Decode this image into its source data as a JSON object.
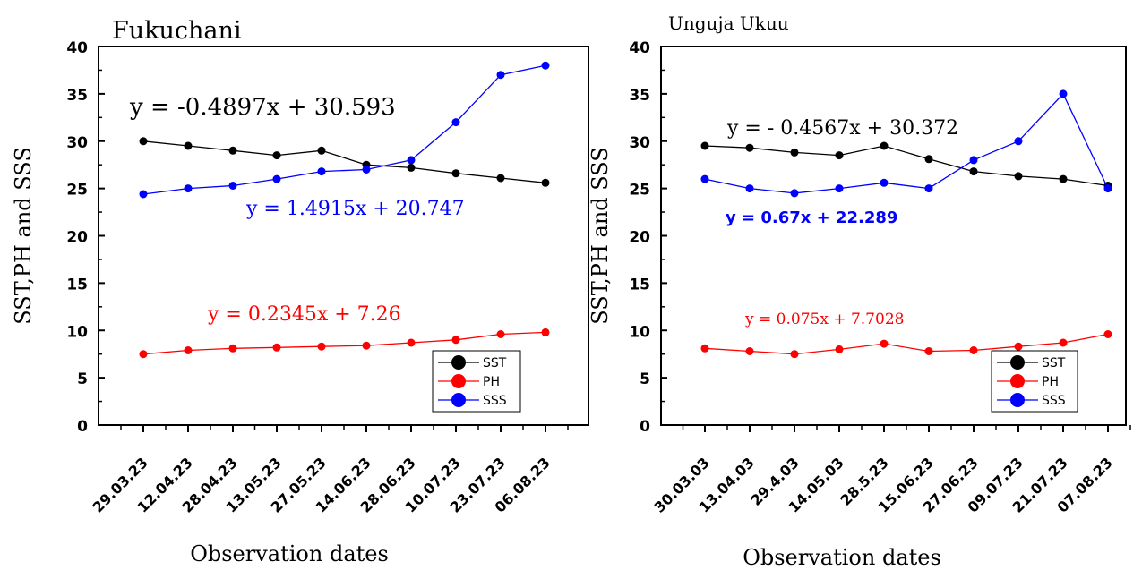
{
  "chart_data": [
    {
      "type": "line",
      "title": "Fukuchani",
      "xlabel": "Observation dates",
      "ylabel": "SST,PH and SSS",
      "categories": [
        "29.03.23",
        "12.04.23",
        "28.04.23",
        "13.05.23",
        "27.05.23",
        "14.06.23",
        "28.06.23",
        "10.07.23",
        "23.07.23",
        "06.08.23"
      ],
      "ylim": [
        0,
        40
      ],
      "yticks": [
        0,
        5,
        10,
        15,
        20,
        25,
        30,
        35,
        40
      ],
      "legend_position": "bottom-right",
      "series": [
        {
          "name": "SST",
          "color": "#000000",
          "values": [
            30.0,
            29.5,
            29.0,
            28.5,
            29.0,
            27.5,
            27.2,
            26.6,
            26.1,
            25.6
          ]
        },
        {
          "name": "PH",
          "color": "#ff0000",
          "values": [
            7.5,
            7.9,
            8.1,
            8.2,
            8.3,
            8.4,
            8.7,
            9.0,
            9.6,
            9.8
          ]
        },
        {
          "name": "SSS",
          "color": "#0000ff",
          "values": [
            24.4,
            25.0,
            25.3,
            26.0,
            26.8,
            27.0,
            28.0,
            32.0,
            37.0,
            38.0
          ]
        }
      ],
      "annotations": [
        {
          "series": "SST",
          "text": "y = -0.4897x + 30.593",
          "color": "#000000"
        },
        {
          "series": "SSS",
          "text": "y = 1.4915x + 20.747",
          "color": "#0000ff"
        },
        {
          "series": "PH",
          "text": "y = 0.2345x + 7.26",
          "color": "#ff0000"
        }
      ]
    },
    {
      "type": "line",
      "title": "Unguja Ukuu",
      "xlabel": "Observation dates",
      "ylabel": "SST,PH and SSS",
      "categories": [
        "30.03.03",
        "13.04.03",
        "29.4.03",
        "14.05.03",
        "28.5.23",
        "15.06.23",
        "27.06.23",
        "09.07.23",
        "21.07.23",
        "07.08.23"
      ],
      "ylim": [
        0,
        40
      ],
      "yticks": [
        0,
        5,
        10,
        15,
        20,
        25,
        30,
        35,
        40
      ],
      "legend_position": "bottom-right",
      "series": [
        {
          "name": "SST",
          "color": "#000000",
          "values": [
            29.5,
            29.3,
            28.8,
            28.5,
            29.5,
            28.1,
            26.8,
            26.3,
            26.0,
            25.3
          ]
        },
        {
          "name": "PH",
          "color": "#ff0000",
          "values": [
            8.1,
            7.8,
            7.5,
            8.0,
            8.6,
            7.8,
            7.9,
            8.3,
            8.7,
            9.6
          ]
        },
        {
          "name": "SSS",
          "color": "#0000ff",
          "values": [
            26.0,
            25.0,
            24.5,
            25.0,
            25.6,
            25.0,
            28.0,
            30.0,
            35.0,
            25.0
          ]
        }
      ],
      "annotations": [
        {
          "series": "SST",
          "text": "y = - 0.4567x + 30.372",
          "color": "#000000"
        },
        {
          "series": "SSS",
          "text": "y = 0.67x + 22.289",
          "color": "#0000ff"
        },
        {
          "series": "PH",
          "text": "y = 0.075x + 7.7028",
          "color": "#ff0000"
        }
      ]
    }
  ]
}
